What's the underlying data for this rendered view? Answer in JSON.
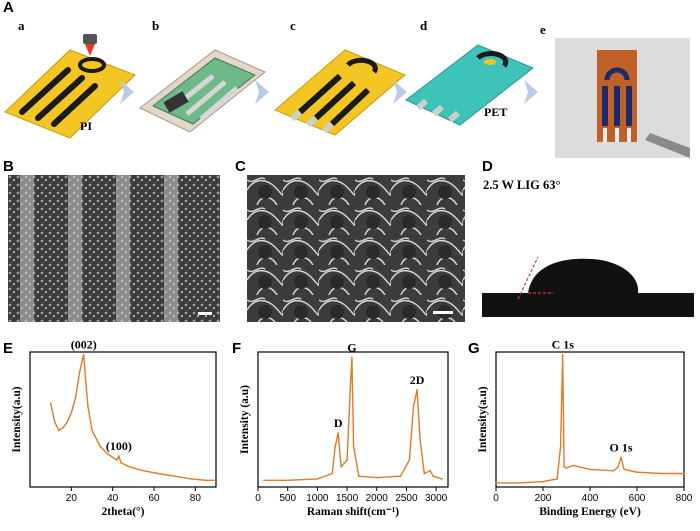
{
  "figure": {
    "panel_A": {
      "label": "A",
      "steps": [
        {
          "label": "a",
          "material": "PI"
        },
        {
          "label": "b"
        },
        {
          "label": "c"
        },
        {
          "label": "d",
          "material": "PET"
        },
        {
          "label": "e"
        }
      ]
    },
    "panel_B": {
      "label": "B"
    },
    "panel_C": {
      "label": "C"
    },
    "panel_D": {
      "label": "D",
      "caption": "2.5 W LIG 63°"
    },
    "colors": {
      "plot_line": "#e07b2a",
      "sensor_yellow": "#f3c623",
      "electrode_black": "#1a1a1a",
      "pet_teal": "#3ec3b8"
    }
  },
  "chart_data": [
    {
      "id": "E",
      "type": "line",
      "panel_label": "E",
      "xlabel": "2theta(°)",
      "ylabel": "Intensity(a.u)",
      "xlim": [
        0,
        90
      ],
      "xticks": [
        20,
        40,
        60,
        80
      ],
      "x": [
        10,
        12,
        14,
        16,
        18,
        20,
        22,
        24,
        25,
        26,
        27,
        28,
        30,
        34,
        38,
        42,
        43,
        44,
        48,
        55,
        62,
        70,
        78,
        85,
        89
      ],
      "values": [
        0.62,
        0.48,
        0.42,
        0.44,
        0.48,
        0.55,
        0.66,
        0.85,
        0.92,
        0.98,
        0.78,
        0.6,
        0.42,
        0.3,
        0.24,
        0.2,
        0.23,
        0.18,
        0.15,
        0.12,
        0.1,
        0.08,
        0.06,
        0.05,
        0.05
      ],
      "annotations": [
        {
          "text": "(002)",
          "x": 26
        },
        {
          "text": "(100)",
          "x": 43
        }
      ]
    },
    {
      "id": "F",
      "type": "line",
      "panel_label": "F",
      "xlabel": "Raman shift(cm⁻¹)",
      "ylabel": "Intensity (a.u)",
      "xlim": [
        0,
        3200
      ],
      "xticks": [
        0,
        500,
        1000,
        1500,
        2000,
        2500,
        3000
      ],
      "x": [
        100,
        500,
        1000,
        1250,
        1300,
        1350,
        1400,
        1500,
        1560,
        1582,
        1610,
        1700,
        2000,
        2400,
        2550,
        2620,
        2680,
        2730,
        2800,
        2900,
        2950,
        3100
      ],
      "values": [
        0.05,
        0.05,
        0.06,
        0.1,
        0.3,
        0.4,
        0.15,
        0.2,
        0.78,
        0.96,
        0.3,
        0.08,
        0.07,
        0.08,
        0.2,
        0.6,
        0.72,
        0.35,
        0.1,
        0.12,
        0.08,
        0.06
      ],
      "annotations": [
        {
          "text": "D",
          "x": 1350
        },
        {
          "text": "G",
          "x": 1582
        },
        {
          "text": "2D",
          "x": 2680
        }
      ]
    },
    {
      "id": "G",
      "type": "line",
      "panel_label": "G",
      "xlabel": "Binding Energy (eV)",
      "ylabel": "Intensity(a.u)",
      "xlim": [
        0,
        800
      ],
      "xticks": [
        0,
        200,
        400,
        600,
        800
      ],
      "x": [
        0,
        100,
        200,
        260,
        275,
        284,
        290,
        300,
        330,
        400,
        500,
        520,
        532,
        545,
        600,
        700,
        800
      ],
      "values": [
        0.03,
        0.03,
        0.04,
        0.06,
        0.3,
        0.98,
        0.15,
        0.14,
        0.16,
        0.13,
        0.12,
        0.15,
        0.22,
        0.13,
        0.11,
        0.1,
        0.1
      ],
      "annotations": [
        {
          "text": "C 1s",
          "x": 284
        },
        {
          "text": "O 1s",
          "x": 532
        }
      ]
    }
  ]
}
